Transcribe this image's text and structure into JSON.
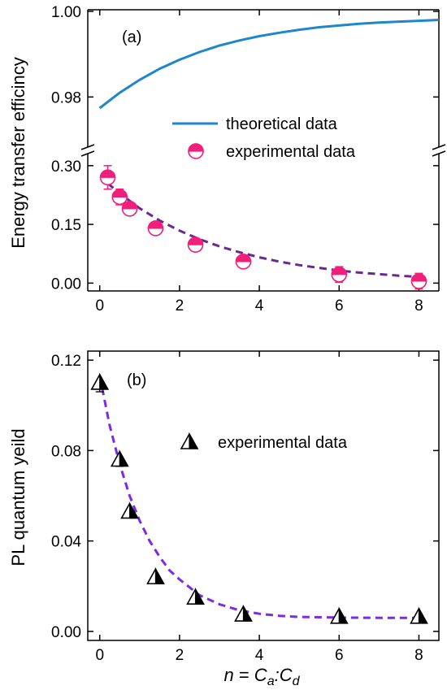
{
  "chart_data": [
    {
      "type": "line",
      "panel": "(a)",
      "ylabel": "Energy transfer efficincy",
      "xlim": [
        -0.3,
        8.5
      ],
      "x_ticks": [
        "0",
        "2",
        "4",
        "6",
        "8"
      ],
      "axis_break": true,
      "upper_ylim": [
        0.97,
        1.0
      ],
      "upper_y_ticks": [
        "0.98",
        "1.00"
      ],
      "lower_ylim": [
        -0.02,
        0.31
      ],
      "lower_y_ticks": [
        "0.00",
        "0.15",
        "0.30"
      ],
      "legend": [
        {
          "label": "theoretical data",
          "color": "#1f86c8",
          "marker": "line"
        },
        {
          "label": "experimental data",
          "color": "#ef1f7a",
          "marker": "half-filled-circle"
        }
      ],
      "series": [
        {
          "name": "theoretical data",
          "color": "#1f86c8",
          "style": "solid",
          "x": [
            0.0,
            0.5,
            1.0,
            1.5,
            2.0,
            2.5,
            3.0,
            3.5,
            4.0,
            4.5,
            5.0,
            5.5,
            6.0,
            6.5,
            7.0,
            7.5,
            8.0,
            8.5
          ],
          "y": [
            0.9774,
            0.981,
            0.984,
            0.9866,
            0.9887,
            0.9905,
            0.992,
            0.9932,
            0.9942,
            0.995,
            0.9957,
            0.9963,
            0.9967,
            0.9971,
            0.9974,
            0.9976,
            0.9978,
            0.998
          ]
        },
        {
          "name": "experimental data",
          "color": "#ef1f7a",
          "marker": "half-filled-circle",
          "x": [
            0.2,
            0.5,
            0.75,
            1.4,
            2.4,
            3.6,
            6.0,
            8.0
          ],
          "y": [
            0.27,
            0.22,
            0.19,
            0.14,
            0.098,
            0.055,
            0.022,
            0.005
          ],
          "yerr": [
            0.03,
            0.02,
            0.015,
            0.012,
            0.01,
            0.01,
            0.02,
            0.02
          ]
        },
        {
          "name": "",
          "color": "#6a2a8c",
          "style": "dashed",
          "x": [
            0.2,
            0.5,
            1.0,
            1.5,
            2.0,
            2.5,
            3.0,
            3.5,
            4.0,
            4.5,
            5.0,
            5.5,
            6.0,
            6.5,
            7.0,
            7.5,
            8.0
          ],
          "y": [
            0.255,
            0.229,
            0.191,
            0.16,
            0.134,
            0.112,
            0.094,
            0.079,
            0.066,
            0.055,
            0.046,
            0.039,
            0.032,
            0.027,
            0.023,
            0.019,
            0.016
          ]
        }
      ]
    },
    {
      "type": "scatter",
      "panel": "(b)",
      "ylabel": "PL quantum yeild",
      "xlabel_parts": {
        "n": "n",
        "eq": " = ",
        "ca": "C",
        "ca_sub": "a",
        "colon": ":",
        "cd": "C",
        "cd_sub": "d"
      },
      "xlim": [
        -0.3,
        8.5
      ],
      "ylim": [
        -0.004,
        0.124
      ],
      "x_ticks": [
        "0",
        "2",
        "4",
        "6",
        "8"
      ],
      "y_ticks": [
        "0.00",
        "0.04",
        "0.08",
        "0.12"
      ],
      "legend": [
        {
          "label": "experimental data",
          "color": "#000000",
          "marker": "half-filled-triangle"
        }
      ],
      "series": [
        {
          "name": "experimental data",
          "color": "#000000",
          "marker": "half-filled-triangle",
          "x": [
            0.0,
            0.5,
            0.75,
            1.4,
            2.4,
            3.6,
            6.0,
            8.0
          ],
          "y": [
            0.11,
            0.076,
            0.053,
            0.024,
            0.015,
            0.0075,
            0.0065,
            0.0065
          ],
          "yerr": [
            0.004,
            0.003,
            0.002,
            0.002,
            0.001,
            0.001,
            0.001,
            0.001
          ]
        },
        {
          "name": "",
          "color": "#7b2be2",
          "style": "dashed",
          "x": [
            0.0,
            0.25,
            0.5,
            0.75,
            1.0,
            1.25,
            1.5,
            1.75,
            2.0,
            2.5,
            3.0,
            3.5,
            4.0,
            4.5,
            5.0,
            6.0,
            7.0,
            8.0
          ],
          "y": [
            0.113,
            0.091,
            0.074,
            0.06,
            0.049,
            0.04,
            0.033,
            0.027,
            0.023,
            0.016,
            0.012,
            0.0093,
            0.0078,
            0.0069,
            0.0064,
            0.0061,
            0.006,
            0.006
          ]
        }
      ]
    }
  ]
}
